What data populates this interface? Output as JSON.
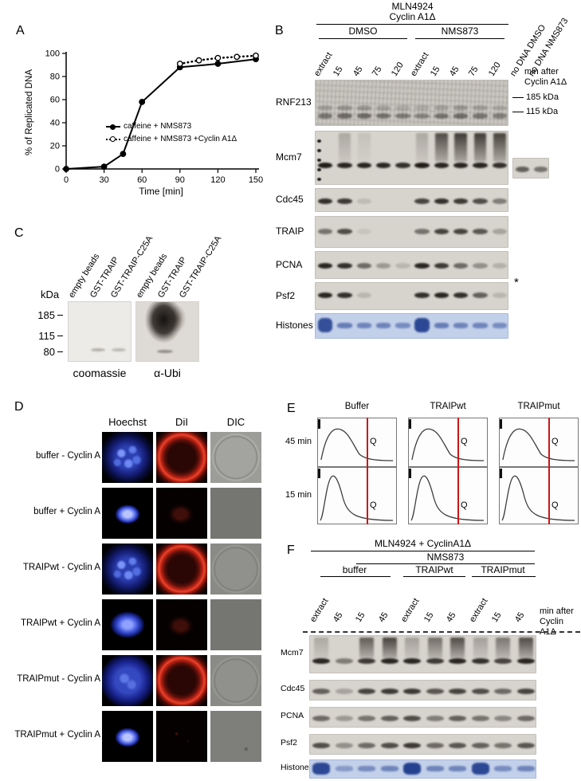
{
  "figure": {
    "panels": {
      "A": {
        "label": "A",
        "chart_data": {
          "type": "line",
          "title": "",
          "xlabel": "Time [min]",
          "ylabel": "% of Replicated DNA",
          "xlim": [
            0,
            150
          ],
          "ylim": [
            0,
            100
          ],
          "xticks": [
            0,
            30,
            60,
            90,
            120,
            150
          ],
          "yticks": [
            0,
            20,
            40,
            60,
            80,
            100
          ],
          "grid": false,
          "legend_position": "inside-right",
          "series": [
            {
              "name": "caffeine + NMS873",
              "line": "solid",
              "marker": "filled",
              "x": [
                0,
                30,
                45,
                60,
                90,
                120,
                150
              ],
              "y": [
                0,
                2,
                13,
                58,
                88,
                91,
                95
              ]
            },
            {
              "name": "caffeine + NMS873 +Cyclin A1Δ",
              "line": "dotted",
              "marker": "open",
              "x": [
                90,
                105,
                120,
                135,
                150
              ],
              "y": [
                91,
                94,
                96,
                97,
                98
              ]
            }
          ]
        }
      },
      "B": {
        "label": "B",
        "title_line1": "MLN4924",
        "title_line2": "Cyclin A1Δ",
        "groups": [
          "DMSO",
          "NMS873"
        ],
        "lanes": [
          "extract",
          "15",
          "45",
          "75",
          "120",
          "extract",
          "15",
          "45",
          "75",
          "120",
          "no DNA DMSO",
          "no DNA NMS873"
        ],
        "right_label_line1": "min after",
        "right_label_line2": "Cyclin A1Δ",
        "markers": [
          "185 kDa",
          "115 kDa"
        ],
        "asterisk": "*",
        "blots": [
          {
            "name": "RNF213",
            "h": 58,
            "style": "noisy",
            "bands": [
              {
                "y": 0.76,
                "i": [
                  0.45,
                  0.5,
                  0.5,
                  0.45,
                  0.4,
                  0.35,
                  0.45,
                  0.5,
                  0.45,
                  0.4
                ]
              },
              {
                "y": 0.6,
                "i": [
                  0.2,
                  0.25,
                  0.25,
                  0.2,
                  0.15,
                  0.15,
                  0.2,
                  0.25,
                  0.2,
                  0.15
                ]
              }
            ]
          },
          {
            "name": "Mcm7",
            "h": 68,
            "ladder": true,
            "bands": [
              {
                "y": 0.62,
                "i": [
                  0.95,
                  0.9,
                  0.9,
                  0.9,
                  0.85,
                  0.95,
                  0.9,
                  0.9,
                  0.9,
                  0.85
                ]
              }
            ],
            "smear": [
              0,
              0.25,
              0.1,
              0,
              0,
              0.25,
              0.8,
              0.9,
              0.9,
              0.85
            ],
            "extra_lanes": [
              0.6,
              0.5
            ]
          },
          {
            "name": "Cdc45",
            "h": 30,
            "bands": [
              {
                "y": 0.5,
                "i": [
                  0.85,
                  0.8,
                  0.12,
                  0,
                  0,
                  0.75,
                  0.85,
                  0.8,
                  0.7,
                  0.45
                ]
              }
            ]
          },
          {
            "name": "TRAIP",
            "h": 40,
            "bands": [
              {
                "y": 0.45,
                "i": [
                  0.5,
                  0.7,
                  0.08,
                  0,
                  0,
                  0.5,
                  0.75,
                  0.75,
                  0.65,
                  0.25
                ]
              }
            ]
          },
          {
            "name": "PCNA",
            "h": 35,
            "bands": [
              {
                "y": 0.5,
                "i": [
                  0.9,
                  0.85,
                  0.55,
                  0.3,
                  0.15,
                  0.9,
                  0.8,
                  0.55,
                  0.35,
                  0.18
                ]
              }
            ]
          },
          {
            "name": "Psf2",
            "h": 35,
            "bands": [
              {
                "y": 0.45,
                "i": [
                  0.9,
                  0.85,
                  0.15,
                  0,
                  0,
                  0.85,
                  0.9,
                  0.85,
                  0.6,
                  0.15
                ]
              }
            ]
          },
          {
            "name": "Histones",
            "h": 32,
            "style": "histone",
            "tall": [
              0,
              5
            ],
            "bands": [
              {
                "y": 0.45,
                "i": [
                  0.85,
                  0.55,
                  0.5,
                  0.5,
                  0.45,
                  0.9,
                  0.55,
                  0.5,
                  0.5,
                  0.45
                ]
              }
            ]
          }
        ]
      },
      "C": {
        "label": "C",
        "lane_labels": [
          "empty beads",
          "GST-TRAIP",
          "GST-TRAIP-C25A"
        ],
        "kda": "kDa",
        "markers": [
          "185",
          "115",
          "80"
        ],
        "captions": [
          "coomassie",
          "α-Ubi"
        ]
      },
      "D": {
        "label": "D",
        "columns": [
          "Hoechst",
          "DiI",
          "DIC"
        ],
        "rows": [
          {
            "label": "buffer - Cyclin A",
            "hoechst": "large",
            "dii": "ring",
            "dic": "circle"
          },
          {
            "label": "buffer + Cyclin A",
            "hoechst": "small",
            "dii": "dim",
            "dic": "plain"
          },
          {
            "label": "TRAIPwt - Cyclin A",
            "hoechst": "large",
            "dii": "ring",
            "dic": "circle-faint"
          },
          {
            "label": "TRAIPwt + Cyclin A",
            "hoechst": "medium",
            "dii": "dim",
            "dic": "plain"
          },
          {
            "label": "TRAIPmut - Cyclin A",
            "hoechst": "large-round",
            "dii": "ring",
            "dic": "circle-faint"
          },
          {
            "label": "TRAIPmut + Cyclin A",
            "hoechst": "small",
            "dii": "dark",
            "dic": "plain-speck"
          }
        ]
      },
      "E": {
        "label": "E",
        "conditions": [
          "Buffer",
          "TRAIPwt",
          "TRAIPmut"
        ],
        "rows": [
          "45 min",
          "15 min"
        ],
        "gate_label": "Q"
      },
      "F": {
        "label": "F",
        "title": "MLN4924 + CyclinA1Δ",
        "subtitle": "NMS873",
        "groups": [
          "buffer",
          "TRAIPwt",
          "TRAIPmut"
        ],
        "lanes": [
          "extract",
          "45",
          "15",
          "45",
          "extract",
          "15",
          "45",
          "extract",
          "15",
          "45"
        ],
        "right_label_line1": "min after",
        "right_label_line2": "Cyclin A1Δ",
        "blots": [
          {
            "name": "Mcm7",
            "h": 48,
            "bands": [
              {
                "y": 0.66,
                "i": [
                  0.9,
                  0.45,
                  0.8,
                  0.9,
                  0.9,
                  0.8,
                  0.9,
                  0.85,
                  0.75,
                  0.9
                ]
              }
            ],
            "smear": [
              0.25,
              0,
              0.7,
              0.85,
              0.3,
              0.6,
              0.8,
              0.3,
              0.55,
              0.8
            ]
          },
          {
            "name": "Cdc45",
            "h": 26,
            "bands": [
              {
                "y": 0.5,
                "i": [
                  0.6,
                  0.25,
                  0.75,
                  0.8,
                  0.8,
                  0.65,
                  0.75,
                  0.7,
                  0.55,
                  0.75
                ]
              }
            ]
          },
          {
            "name": "PCNA",
            "h": 26,
            "bands": [
              {
                "y": 0.5,
                "i": [
                  0.55,
                  0.3,
                  0.5,
                  0.6,
                  0.7,
                  0.45,
                  0.6,
                  0.5,
                  0.4,
                  0.55
                ]
              }
            ]
          },
          {
            "name": "Psf2",
            "h": 26,
            "bands": [
              {
                "y": 0.5,
                "i": [
                  0.7,
                  0.35,
                  0.55,
                  0.7,
                  0.8,
                  0.55,
                  0.65,
                  0.6,
                  0.5,
                  0.65
                ]
              }
            ]
          },
          {
            "name": "Histones",
            "h": 24,
            "style": "histone",
            "tall": [
              0,
              4,
              7
            ],
            "bands": [
              {
                "y": 0.45,
                "i": [
                  0.9,
                  0.35,
                  0.45,
                  0.5,
                  0.95,
                  0.5,
                  0.5,
                  0.9,
                  0.45,
                  0.5
                ]
              }
            ]
          }
        ]
      }
    }
  }
}
